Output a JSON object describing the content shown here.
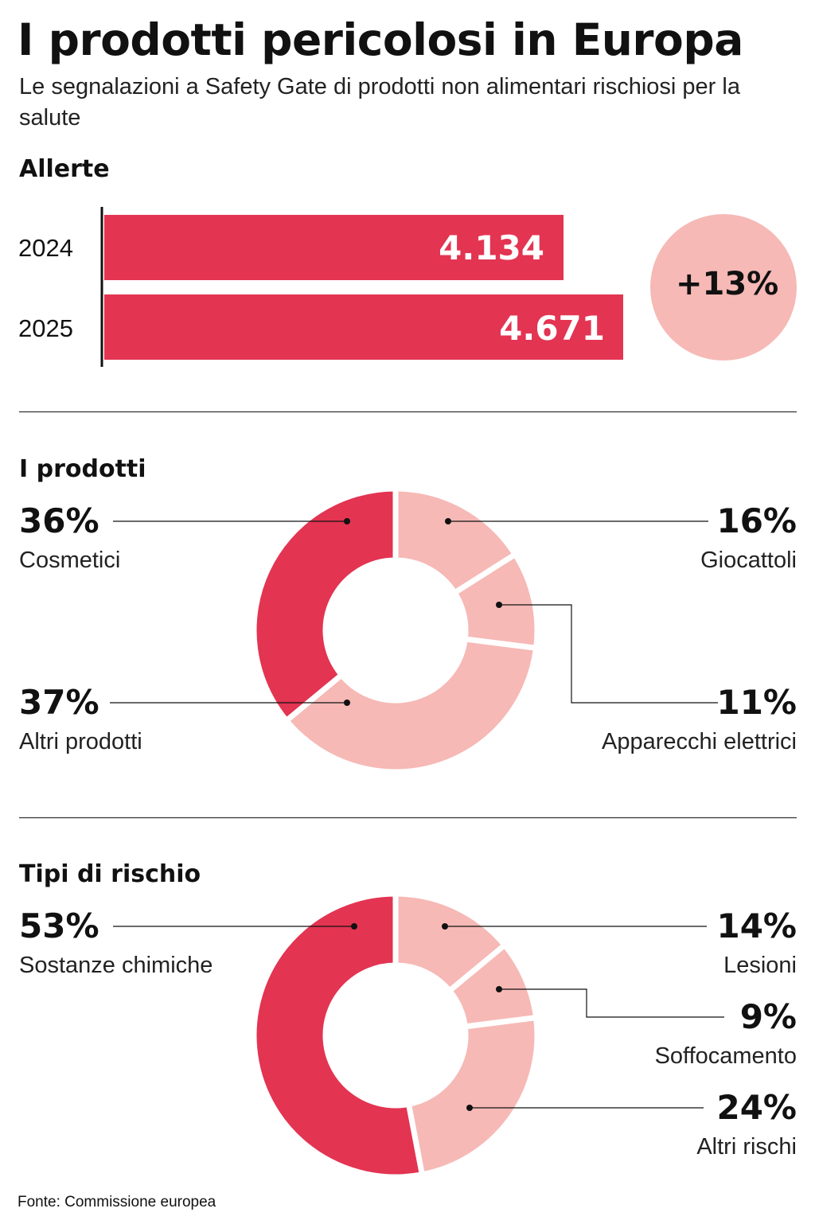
{
  "header": {
    "title": "I prodotti pericolosi in Europa",
    "subtitle": "Le segnalazioni a Safety Gate di prodotti non alimentari rischiosi per la salute"
  },
  "colors": {
    "primary": "#E33452",
    "secondary": "#F6B9B6",
    "text": "#111111"
  },
  "chart_data": [
    {
      "type": "bar",
      "title": "Allerte",
      "categories": [
        "2024",
        "2025"
      ],
      "values": [
        4134,
        4671
      ],
      "value_labels": [
        "4.134",
        "4.671"
      ],
      "annotation": "+13%"
    },
    {
      "type": "pie",
      "title": "I prodotti",
      "donut": true,
      "slices": [
        {
          "label": "Giocattoli",
          "value": 16,
          "pct_label": "16%",
          "color": "#F6B9B6"
        },
        {
          "label": "Apparecchi elettrici",
          "value": 11,
          "pct_label": "11%",
          "color": "#F6B9B6"
        },
        {
          "label": "Altri prodotti",
          "value": 37,
          "pct_label": "37%",
          "color": "#F6B9B6"
        },
        {
          "label": "Cosmetici",
          "value": 36,
          "pct_label": "36%",
          "color": "#E33452"
        }
      ]
    },
    {
      "type": "pie",
      "title": "Tipi di rischio",
      "donut": true,
      "slices": [
        {
          "label": "Lesioni",
          "value": 14,
          "pct_label": "14%",
          "color": "#F6B9B6"
        },
        {
          "label": "Soffocamento",
          "value": 9,
          "pct_label": "9%",
          "color": "#F6B9B6"
        },
        {
          "label": "Altri rischi",
          "value": 24,
          "pct_label": "24%",
          "color": "#F6B9B6"
        },
        {
          "label": "Sostanze chimiche",
          "value": 53,
          "pct_label": "53%",
          "color": "#E33452"
        }
      ]
    }
  ],
  "footer": {
    "source": "Fonte: Commissione europea"
  }
}
